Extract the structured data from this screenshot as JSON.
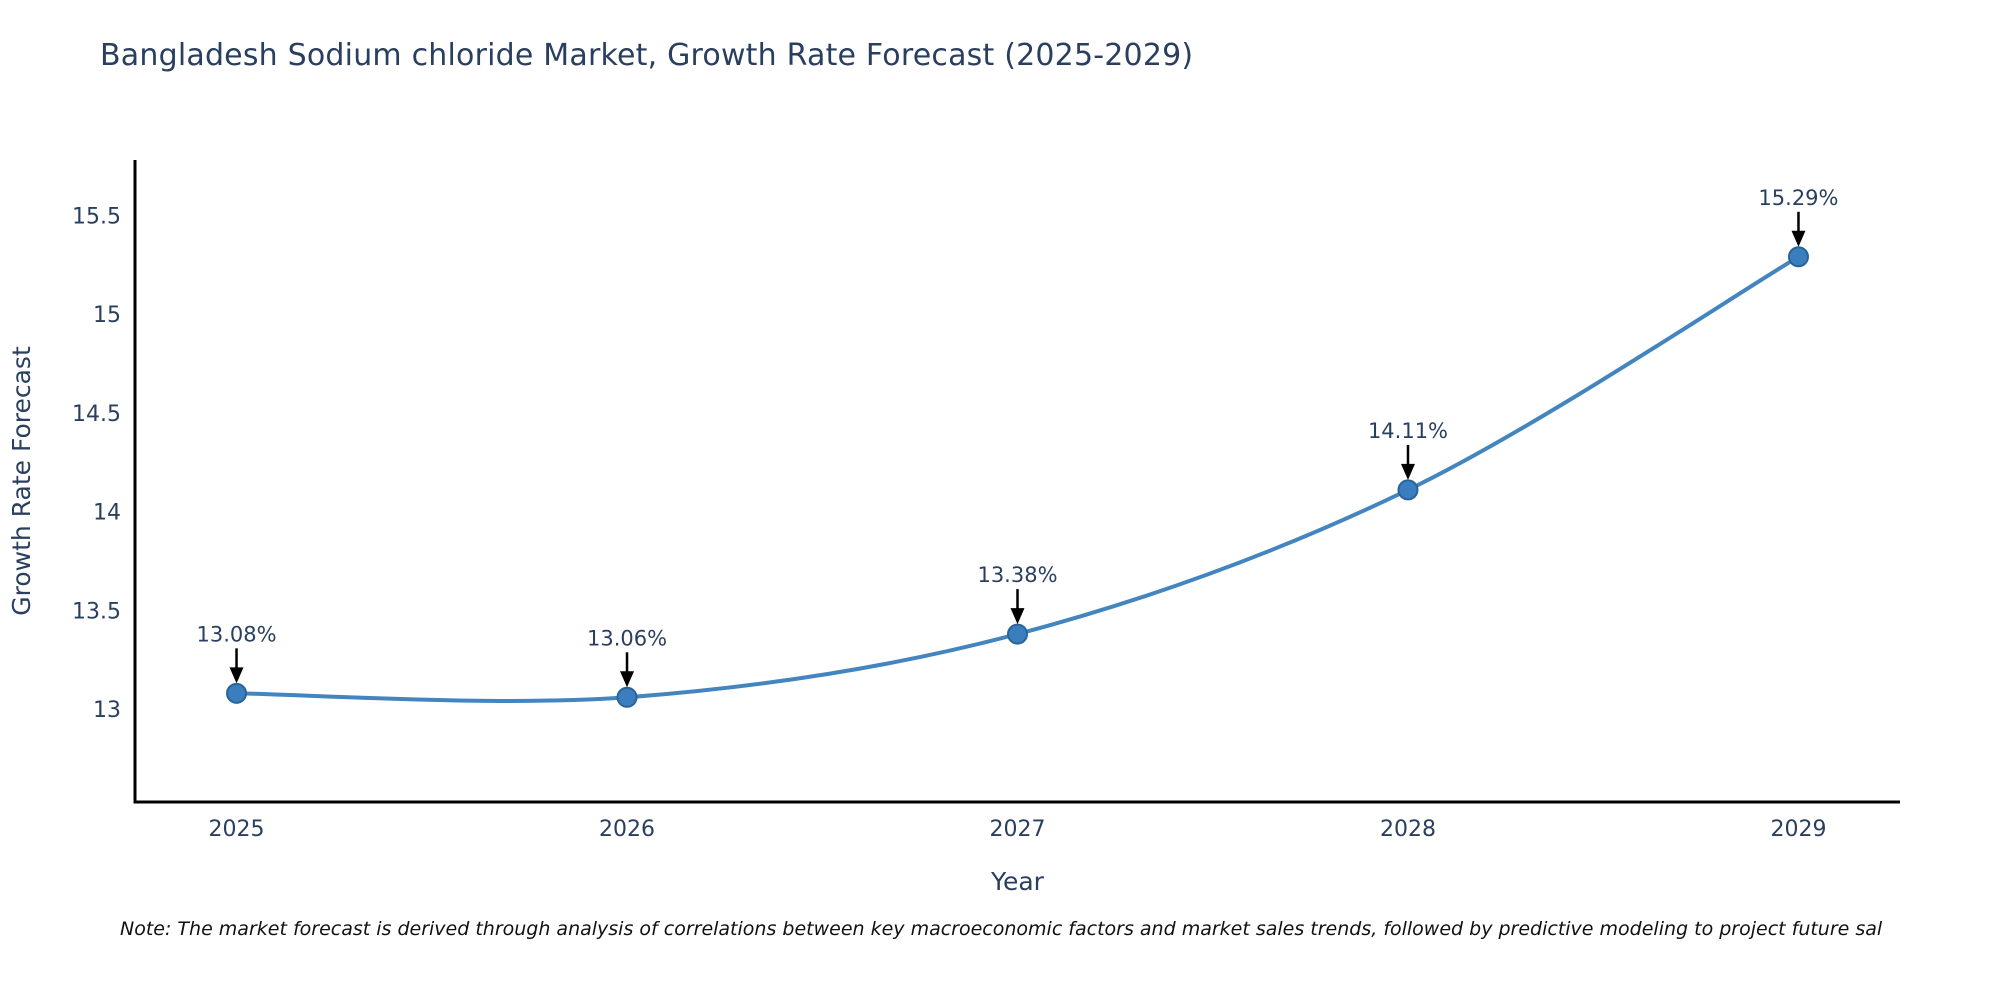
{
  "title": "Bangladesh Sodium chloride Market, Growth Rate Forecast (2025-2029)",
  "note": "Note: The market forecast is derived through analysis of correlations between key macroeconomic factors and market sales trends, followed by predictive modeling to project future sal",
  "chart_data": {
    "type": "line",
    "title": "Bangladesh Sodium chloride Market, Growth Rate Forecast (2025-2029)",
    "xlabel": "Year",
    "ylabel": "Growth Rate Forecast",
    "x": [
      2025,
      2026,
      2027,
      2028,
      2029
    ],
    "values": [
      13.08,
      13.06,
      13.38,
      14.11,
      15.29
    ],
    "point_labels": [
      "13.08%",
      "13.06%",
      "13.38%",
      "14.11%",
      "15.29%"
    ],
    "xticks": [
      "2025",
      "2026",
      "2027",
      "2028",
      "2029"
    ],
    "yticks": [
      13,
      13.5,
      14,
      14.5,
      15,
      15.5
    ],
    "xlim": [
      2024.74,
      2029.26
    ],
    "ylim": [
      12.53,
      15.78
    ],
    "grid": false,
    "legend": false,
    "line_shape": "spline",
    "annotation_style": "text-above-with-down-arrow"
  },
  "colors": {
    "background": "#ffffff",
    "title_text": "#2a3f5f",
    "axis_text": "#2a3f5f",
    "axis_line": "#000000",
    "series_line": "#4285bf",
    "marker_fill": "#3a7ebf",
    "marker_border": "#2a6496",
    "annotation_text": "#2a3f5f",
    "arrow": "#000000",
    "note_text": "#111111"
  }
}
